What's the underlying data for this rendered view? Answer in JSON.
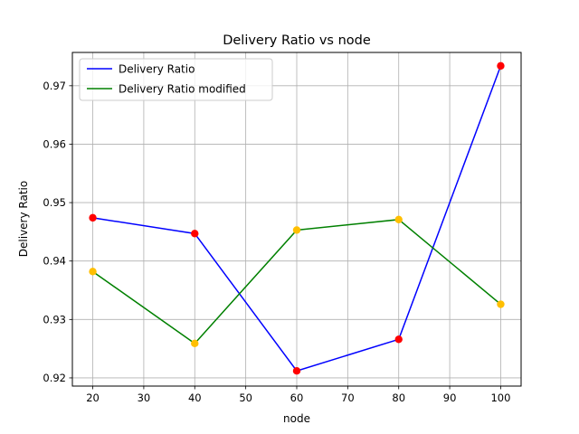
{
  "chart_data": {
    "type": "line",
    "title": "Delivery Ratio vs node",
    "xlabel": "node",
    "ylabel": "Delivery Ratio",
    "x": [
      20,
      40,
      60,
      80,
      100
    ],
    "xlim": [
      16,
      104
    ],
    "ylim": [
      0.9186,
      0.9757
    ],
    "xticks": [
      20,
      30,
      40,
      50,
      60,
      70,
      80,
      90,
      100
    ],
    "yticks": [
      0.92,
      0.93,
      0.94,
      0.95,
      0.96,
      0.97
    ],
    "ytick_labels": [
      "0.92",
      "0.93",
      "0.94",
      "0.95",
      "0.96",
      "0.97"
    ],
    "grid": true,
    "legend_position": "upper-left",
    "series": [
      {
        "name": "Delivery Ratio",
        "values": [
          0.9474,
          0.9447,
          0.9212,
          0.9266,
          0.9734
        ],
        "line_color": "#0000ff",
        "marker_color": "#ff0000"
      },
      {
        "name": "Delivery Ratio modified",
        "values": [
          0.9382,
          0.9259,
          0.9453,
          0.9471,
          0.9326
        ],
        "line_color": "#008000",
        "marker_color": "#ffbf00"
      }
    ]
  }
}
